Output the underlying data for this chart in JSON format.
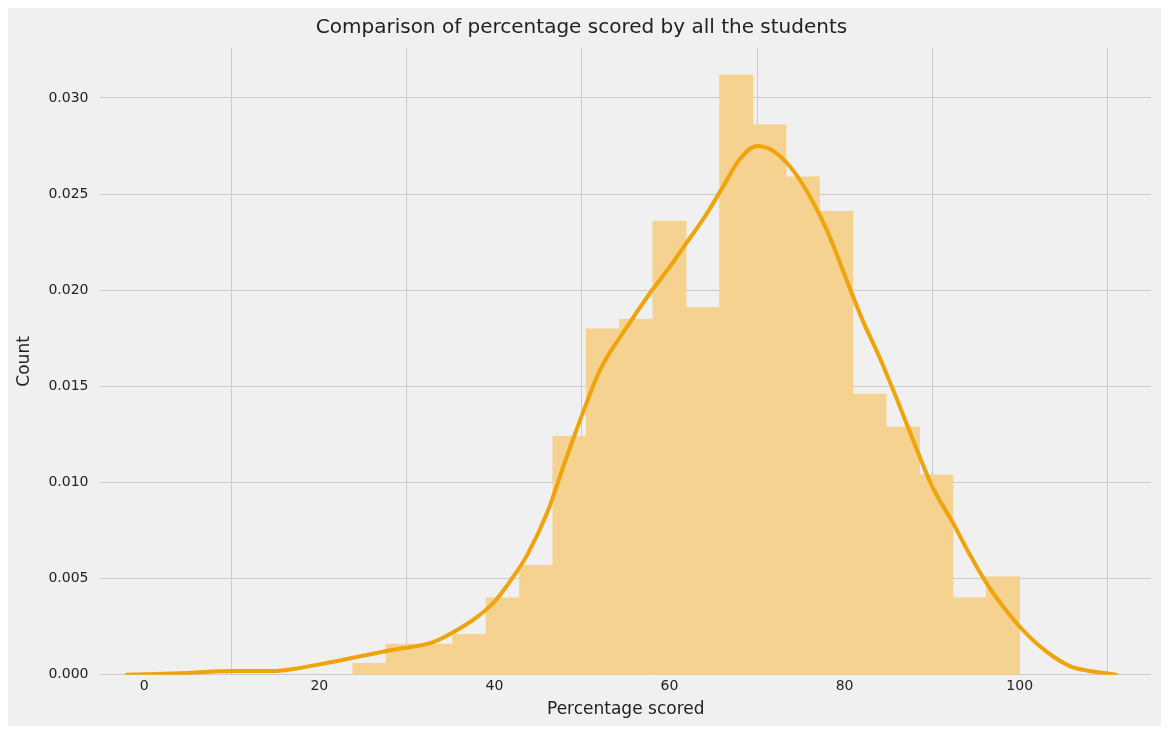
{
  "chart_data": {
    "type": "histogram",
    "title": "Comparison of percentage scored by all the students",
    "xlabel": "Percentage scored",
    "ylabel": "Count",
    "xlim": [
      -5,
      115
    ],
    "xticks": [
      0,
      20,
      40,
      60,
      80,
      100
    ],
    "ylim": [
      0,
      0.0326
    ],
    "yticks": [
      {
        "value": 0,
        "label": "0.000"
      },
      {
        "value": 0.005,
        "label": "0.005"
      },
      {
        "value": 0.01,
        "label": "0.010"
      },
      {
        "value": 0.015,
        "label": "0.015"
      },
      {
        "value": 0.02,
        "label": "0.020"
      },
      {
        "value": 0.025,
        "label": "0.025"
      },
      {
        "value": 0.03,
        "label": "0.030"
      }
    ],
    "grid": true,
    "series": [
      {
        "color": "#f5d28f",
        "bins": [
          20,
          23.81,
          27.62,
          31.43,
          35.24,
          39.05,
          42.86,
          46.67,
          50.48,
          54.29,
          58.1,
          61.9,
          65.71,
          69.52,
          73.33,
          77.14,
          80.95,
          84.76,
          88.57,
          92.38,
          96.19,
          100
        ],
        "values": [
          0,
          0.0006,
          0.0016,
          0.0016,
          0.0021,
          0.004,
          0.0057,
          0.0124,
          0.018,
          0.0185,
          0.0236,
          0.0191,
          0.0312,
          0.0286,
          0.0259,
          0.0241,
          0.0146,
          0.0129,
          0.0104,
          0.004,
          0.0051
        ]
      },
      {
        "type": "line",
        "color": "#f0a30a",
        "x": [
          -2,
          5,
          10,
          15,
          17,
          20.7,
          24,
          28.4,
          33,
          36,
          38,
          40,
          42,
          43.7,
          46,
          48,
          50,
          52,
          55,
          58,
          60,
          62,
          64,
          66,
          68,
          70,
          72,
          74,
          76,
          78,
          80,
          82,
          84,
          86,
          88,
          90,
          92.5,
          94,
          96.3,
          98,
          100,
          102,
          104,
          106,
          108,
          111
        ],
        "values": [
          0,
          0.0001,
          0.0002,
          0.0002,
          0.0003,
          0.0006,
          0.0009,
          0.0013,
          0.0017,
          0.0024,
          0.003,
          0.0038,
          0.005,
          0.0062,
          0.0084,
          0.011,
          0.0135,
          0.0158,
          0.018,
          0.02,
          0.0212,
          0.0225,
          0.0238,
          0.0253,
          0.0268,
          0.0275,
          0.0272,
          0.0263,
          0.0249,
          0.0231,
          0.0208,
          0.0185,
          0.0165,
          0.0143,
          0.012,
          0.0098,
          0.0078,
          0.0065,
          0.0047,
          0.0036,
          0.0025,
          0.0016,
          0.0009,
          0.0004,
          0.0002,
          0
        ]
      }
    ]
  }
}
